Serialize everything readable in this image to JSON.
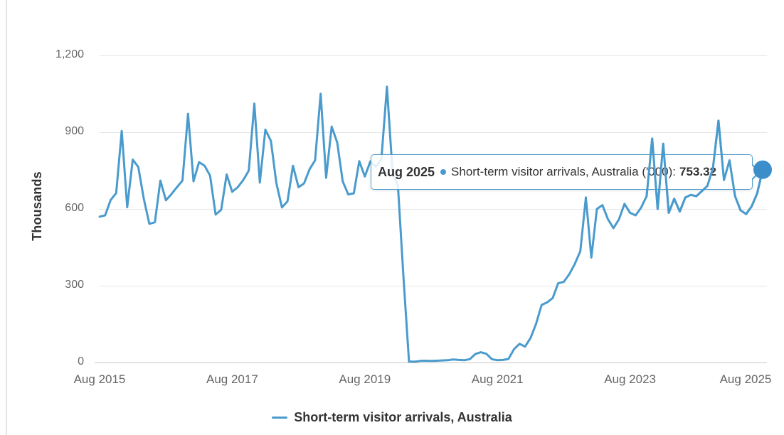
{
  "y_axis": {
    "title": "Thousands",
    "tick_labels": [
      "1,200",
      "900",
      "600",
      "300",
      "0"
    ]
  },
  "x_axis": {
    "tick_labels": [
      "Aug 2015",
      "Aug 2017",
      "Aug 2019",
      "Aug 2021",
      "Aug 2023",
      "Aug 2025"
    ]
  },
  "tooltip": {
    "period": "Aug 2025",
    "series_label": "Short-term visitor arrivals, Australia ('000):",
    "value": "753.32"
  },
  "legend": {
    "label": "Short-term visitor arrivals, Australia"
  },
  "colors": {
    "line": "#4a9bcd",
    "marker": "#3b8ec9",
    "tooltip_border": "#55a0cd",
    "grid": "#e6e6e6",
    "zero_axis": "#c6c6c6",
    "tick_text": "#666666",
    "dark_text": "#333333"
  },
  "chart_data": {
    "type": "line",
    "title": "",
    "ylabel": "Thousands",
    "ylim": [
      0,
      1200
    ],
    "y_ticks": [
      1200,
      900,
      600,
      300,
      0
    ],
    "x_start": "Aug 2015",
    "x_end": "Aug 2025",
    "frequency": "monthly",
    "x_tick_labels": [
      "Aug 2015",
      "Aug 2017",
      "Aug 2019",
      "Aug 2021",
      "Aug 2023",
      "Aug 2025"
    ],
    "grid": true,
    "legend_position": "bottom",
    "series": [
      {
        "name": "Short-term visitor arrivals, Australia",
        "unit": "'000",
        "values": [
          570,
          575,
          635,
          662,
          905,
          607,
          793,
          764,
          640,
          542,
          548,
          711,
          634,
          658,
          685,
          711,
          972,
          708,
          783,
          769,
          730,
          578,
          597,
          735,
          667,
          685,
          713,
          750,
          1012,
          703,
          910,
          866,
          700,
          606,
          630,
          769,
          685,
          700,
          755,
          790,
          1050,
          722,
          922,
          860,
          708,
          657,
          661,
          787,
          727,
          786,
          765,
          795,
          1078,
          750,
          688,
          330,
          4,
          3,
          6,
          7,
          6,
          7,
          8,
          9,
          12,
          10,
          9,
          13,
          33,
          40,
          34,
          13,
          9,
          10,
          14,
          52,
          73,
          62,
          96,
          152,
          225,
          235,
          252,
          310,
          315,
          345,
          385,
          435,
          645,
          410,
          600,
          615,
          560,
          525,
          560,
          620,
          585,
          575,
          605,
          650,
          875,
          600,
          855,
          585,
          640,
          590,
          645,
          655,
          650,
          670,
          690,
          760,
          945,
          713,
          790,
          650,
          595,
          580,
          610,
          660,
          753.32
        ]
      }
    ],
    "highlighted_point": {
      "x": "Aug 2025",
      "value": 753.32
    }
  }
}
